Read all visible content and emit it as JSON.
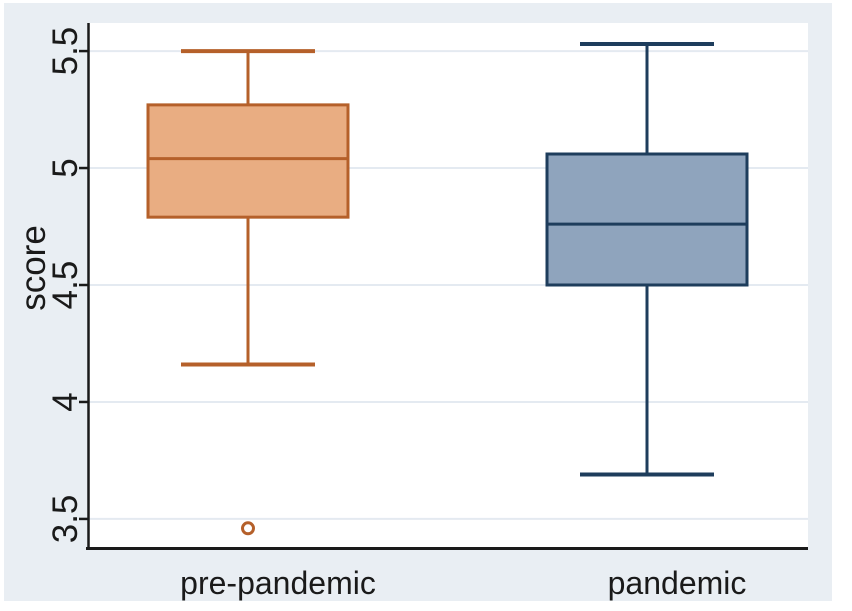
{
  "figure": {
    "background_color": "#e9eef3",
    "plot_background_color": "#ffffff",
    "gridline_color": "#e4eaf1",
    "axis_color": "#1a1a1a",
    "text_color": "#1a1a1a"
  },
  "chart_data": {
    "type": "box",
    "title": "",
    "xlabel": "",
    "ylabel": "score",
    "ylim": [
      3.38,
      5.62
    ],
    "yticks": [
      3.5,
      4,
      4.5,
      5,
      5.5
    ],
    "ytick_labels": [
      "3.5",
      "4",
      "4.5",
      "5",
      "5.5"
    ],
    "grid": true,
    "legend": "none",
    "categories": [
      "pre-pandemic",
      "pandemic"
    ],
    "series": [
      {
        "name": "pre-pandemic",
        "fill_color": "#e9ad82",
        "stroke_color": "#b5602a",
        "whisker_low": 4.16,
        "q1": 4.79,
        "median": 5.04,
        "q3": 5.27,
        "whisker_high": 5.5,
        "outliers": [
          3.46
        ]
      },
      {
        "name": "pandemic",
        "fill_color": "#8fa4bd",
        "stroke_color": "#1e3d5c",
        "whisker_low": 3.69,
        "q1": 4.5,
        "median": 4.76,
        "q3": 5.06,
        "whisker_high": 5.53,
        "outliers": []
      }
    ]
  }
}
